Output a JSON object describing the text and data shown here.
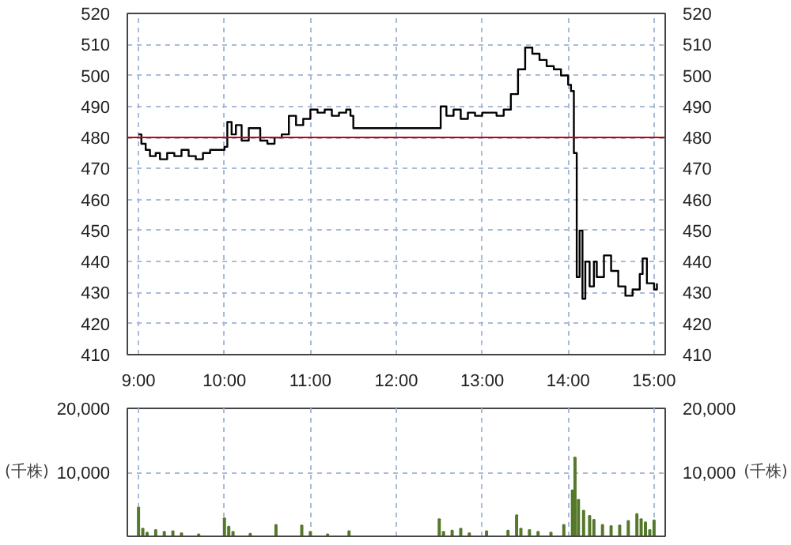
{
  "chart_data": [
    {
      "type": "step",
      "grid": true,
      "x": [
        9.0,
        9.0333,
        9.0833,
        9.1333,
        9.2,
        9.25,
        9.3333,
        9.4167,
        9.5,
        9.5833,
        9.6667,
        9.75,
        9.8333,
        9.9167,
        10.0,
        10.0333,
        10.0833,
        10.1333,
        10.2,
        10.2833,
        10.3333,
        10.4167,
        10.5,
        10.5833,
        10.6667,
        10.75,
        10.8333,
        10.9167,
        11.0,
        11.0833,
        11.1667,
        11.25,
        11.3333,
        11.4167,
        11.4667,
        11.5,
        12.5,
        12.5167,
        12.5833,
        12.6667,
        12.75,
        12.8333,
        12.9167,
        13.0,
        13.0833,
        13.1667,
        13.25,
        13.3333,
        13.4167,
        13.5,
        13.5833,
        13.6667,
        13.75,
        13.8333,
        13.9167,
        14.0,
        14.0333,
        14.0667,
        14.1,
        14.1333,
        14.1667,
        14.2,
        14.25,
        14.3,
        14.3333,
        14.4167,
        14.5,
        14.5833,
        14.6667,
        14.75,
        14.8333,
        14.8667,
        14.9167,
        15.0,
        15.0333
      ],
      "series": [
        {
          "color": "#000000",
          "values": [
            481,
            478,
            476,
            474,
            475,
            473,
            475,
            474,
            476,
            474,
            473,
            475,
            476,
            476,
            477,
            485,
            481,
            484,
            479,
            483,
            483,
            479,
            478,
            480,
            481,
            487,
            484,
            486,
            489,
            488,
            489,
            487,
            488,
            489,
            487,
            483,
            483,
            490,
            487,
            489,
            486,
            488,
            487,
            488,
            488,
            487,
            489,
            494,
            502,
            509,
            507,
            505,
            503,
            502,
            500,
            497,
            495,
            475,
            435,
            450,
            428,
            440,
            432,
            440,
            435,
            442,
            437,
            432,
            429,
            431,
            436,
            441,
            433,
            431,
            433
          ]
        }
      ],
      "xlim": [
        8.87,
        15.13
      ],
      "xticks": [
        {
          "value": 9,
          "label": "9:00"
        },
        {
          "value": 10,
          "label": "10:00"
        },
        {
          "value": 11,
          "label": "11:00"
        },
        {
          "value": 12,
          "label": "12:00"
        },
        {
          "value": 13,
          "label": "13:00"
        },
        {
          "value": 14,
          "label": "14:00"
        },
        {
          "value": 15,
          "label": "15:00"
        }
      ],
      "ylim": [
        410,
        520
      ],
      "yticks": [
        410,
        420,
        430,
        440,
        450,
        460,
        470,
        480,
        490,
        500,
        510,
        520
      ],
      "y2lim": [
        410,
        520
      ],
      "y2ticks": [
        410,
        420,
        430,
        440,
        450,
        460,
        470,
        480,
        490,
        500,
        510,
        520
      ],
      "ref_lines": [
        {
          "axis": "y",
          "value": 480,
          "color": "#cc0000"
        }
      ]
    },
    {
      "type": "bar",
      "grid": true,
      "tick_labels": "y",
      "color": "#55782a",
      "ylabel": "(千株)",
      "y2label": "(千株)",
      "x": [
        9.0,
        9.05,
        9.1,
        9.2,
        9.3,
        9.4,
        9.5,
        9.7,
        10.0,
        10.05,
        10.1,
        10.3,
        10.6,
        10.9,
        11.0,
        11.2,
        11.45,
        12.5,
        12.55,
        12.65,
        12.75,
        12.85,
        13.05,
        13.3,
        13.4,
        13.45,
        13.55,
        13.65,
        13.8,
        13.95,
        14.05,
        14.08,
        14.12,
        14.18,
        14.25,
        14.3,
        14.4,
        14.5,
        14.6,
        14.7,
        14.8,
        14.85,
        14.9,
        14.95,
        15.0
      ],
      "values": [
        4500,
        1200,
        600,
        1000,
        700,
        800,
        500,
        300,
        2800,
        1500,
        700,
        400,
        1800,
        1700,
        700,
        300,
        800,
        2700,
        700,
        900,
        1200,
        500,
        800,
        900,
        3300,
        1200,
        1000,
        700,
        600,
        1800,
        7200,
        12300,
        5700,
        4000,
        3200,
        2600,
        1800,
        1600,
        1700,
        2400,
        3500,
        2700,
        2200,
        1000,
        2500
      ],
      "xlim": [
        8.87,
        15.13
      ],
      "xticks": [
        9,
        10,
        11,
        12,
        13,
        14,
        15
      ],
      "ylim": [
        0,
        20000
      ],
      "yticks": [
        {
          "value": 10000,
          "label": "10,000"
        },
        {
          "value": 20000,
          "label": "20,000"
        }
      ],
      "y2lim": [
        0,
        20000
      ],
      "y2ticks": [
        {
          "value": 10000,
          "label": "10,000"
        },
        {
          "value": 20000,
          "label": "20,000"
        }
      ]
    }
  ]
}
